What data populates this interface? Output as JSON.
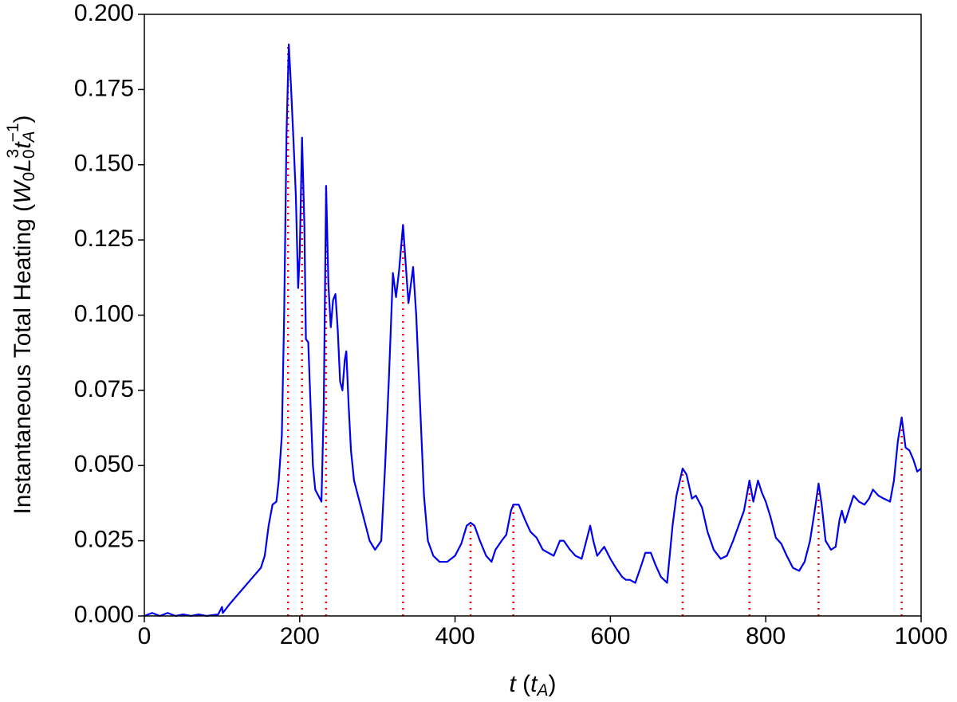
{
  "chart_data": {
    "type": "line",
    "xlabel": [
      "t",
      " (",
      "t",
      "A",
      ")"
    ],
    "ylabel": [
      "Instantaneous Total Heating (",
      "W",
      "0",
      "L",
      "0",
      "3",
      "t",
      "A",
      "−1",
      ")"
    ],
    "xlim": [
      0,
      1000
    ],
    "ylim": [
      0,
      0.2
    ],
    "xticks": [
      0,
      200,
      400,
      600,
      800,
      1000
    ],
    "yticks": [
      {
        "value": 0,
        "label": "0.000"
      },
      0.025,
      {
        "value": 0.05,
        "label": "0.050"
      },
      0.075,
      {
        "value": 0.1,
        "label": "0.100"
      },
      0.125,
      {
        "value": 0.15,
        "label": "0.150"
      },
      0.175,
      {
        "value": 0.2,
        "label": "0.200"
      }
    ],
    "x": [
      0,
      10,
      20,
      30,
      40,
      50,
      60,
      70,
      80,
      95,
      100,
      101,
      110,
      120,
      130,
      140,
      150,
      155,
      160,
      165,
      170,
      173,
      177,
      180,
      183,
      186,
      189,
      192,
      195,
      198,
      200,
      203,
      206,
      208,
      211,
      214,
      217,
      220,
      224,
      228,
      231,
      234,
      237,
      240,
      243,
      246,
      249,
      252,
      255,
      258,
      260,
      263,
      266,
      270,
      275,
      280,
      285,
      290,
      297,
      305,
      310,
      315,
      320,
      324,
      328,
      333,
      337,
      340,
      343,
      346,
      350,
      355,
      360,
      365,
      372,
      380,
      390,
      400,
      408,
      415,
      420,
      425,
      432,
      440,
      447,
      452,
      460,
      466,
      472,
      475,
      482,
      490,
      497,
      505,
      513,
      520,
      527,
      535,
      540,
      548,
      555,
      563,
      570,
      574,
      578,
      583,
      592,
      600,
      607,
      615,
      620,
      625,
      632,
      640,
      645,
      652,
      658,
      665,
      673,
      680,
      685,
      693,
      698,
      705,
      710,
      718,
      725,
      733,
      742,
      750,
      758,
      765,
      772,
      779,
      784,
      790,
      795,
      800,
      806,
      813,
      820,
      827,
      835,
      843,
      850,
      857,
      863,
      868,
      872,
      877,
      884,
      890,
      895,
      898,
      902,
      908,
      913,
      920,
      927,
      933,
      938,
      945,
      952,
      960,
      965,
      970,
      975,
      980,
      985,
      990,
      995,
      1000
    ],
    "series": [
      {
        "color": "#0000ee",
        "values": [
          0,
          0.001,
          0,
          0.001,
          0,
          0.0005,
          0,
          0.0005,
          0,
          0.0005,
          0.003,
          0.001,
          0.004,
          0.007,
          0.01,
          0.013,
          0.016,
          0.02,
          0.03,
          0.037,
          0.038,
          0.045,
          0.06,
          0.1,
          0.16,
          0.19,
          0.175,
          0.158,
          0.14,
          0.109,
          0.12,
          0.159,
          0.13,
          0.092,
          0.091,
          0.07,
          0.05,
          0.042,
          0.04,
          0.038,
          0.07,
          0.143,
          0.11,
          0.096,
          0.105,
          0.107,
          0.095,
          0.078,
          0.075,
          0.085,
          0.088,
          0.07,
          0.055,
          0.045,
          0.04,
          0.035,
          0.03,
          0.025,
          0.022,
          0.025,
          0.05,
          0.08,
          0.114,
          0.106,
          0.115,
          0.13,
          0.115,
          0.104,
          0.11,
          0.116,
          0.1,
          0.07,
          0.04,
          0.025,
          0.02,
          0.018,
          0.018,
          0.02,
          0.024,
          0.03,
          0.031,
          0.03,
          0.025,
          0.02,
          0.018,
          0.022,
          0.025,
          0.027,
          0.035,
          0.037,
          0.037,
          0.032,
          0.028,
          0.026,
          0.022,
          0.021,
          0.02,
          0.025,
          0.025,
          0.022,
          0.02,
          0.019,
          0.026,
          0.03,
          0.025,
          0.02,
          0.023,
          0.019,
          0.016,
          0.013,
          0.012,
          0.012,
          0.011,
          0.017,
          0.021,
          0.021,
          0.017,
          0.013,
          0.011,
          0.03,
          0.04,
          0.049,
          0.047,
          0.039,
          0.04,
          0.036,
          0.028,
          0.022,
          0.019,
          0.02,
          0.025,
          0.03,
          0.035,
          0.045,
          0.038,
          0.045,
          0.041,
          0.038,
          0.033,
          0.026,
          0.024,
          0.02,
          0.016,
          0.015,
          0.018,
          0.025,
          0.035,
          0.044,
          0.037,
          0.025,
          0.022,
          0.023,
          0.032,
          0.035,
          0.031,
          0.036,
          0.04,
          0.038,
          0.037,
          0.039,
          0.042,
          0.04,
          0.039,
          0.038,
          0.045,
          0.058,
          0.066,
          0.056,
          0.055,
          0.052,
          0.048,
          0.049
        ]
      }
    ],
    "peaks": {
      "color": "#ff0000",
      "x": [
        185,
        203,
        234,
        333,
        420,
        475,
        693,
        779,
        868,
        975
      ],
      "values": [
        0.19,
        0.159,
        0.143,
        0.13,
        0.031,
        0.037,
        0.049,
        0.045,
        0.044,
        0.066
      ]
    }
  }
}
